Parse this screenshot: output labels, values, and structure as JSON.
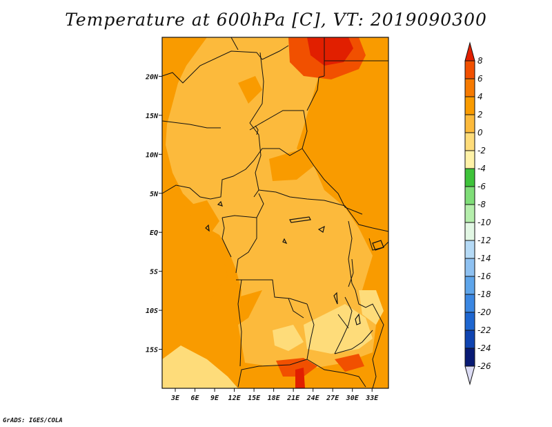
{
  "title": "Temperature at 600hPa [C], VT: 2019090300",
  "credit": "GrADS: IGES/COLA",
  "chart_data": {
    "type": "heatmap",
    "title": "Temperature at 600hPa [C], VT: 2019090300",
    "xlabel": "",
    "ylabel": "",
    "xlim": [
      1,
      35.5
    ],
    "ylim": [
      -20,
      25
    ],
    "x_ticks": [
      "3E",
      "6E",
      "9E",
      "12E",
      "15E",
      "18E",
      "21E",
      "24E",
      "27E",
      "30E",
      "33E"
    ],
    "x_tick_values": [
      3,
      6,
      9,
      12,
      15,
      18,
      21,
      24,
      27,
      30,
      33
    ],
    "y_ticks": [
      "20N",
      "15N",
      "10N",
      "5N",
      "EQ",
      "5S",
      "10S",
      "15S"
    ],
    "y_tick_values": [
      20,
      15,
      10,
      5,
      0,
      -5,
      -10,
      -15
    ],
    "colorbar_levels": [
      "8",
      "6",
      "4",
      "2",
      "0",
      "-2",
      "-4",
      "-6",
      "-8",
      "-10",
      "-12",
      "-14",
      "-16",
      "-18",
      "-20",
      "-22",
      "-24",
      "-26"
    ],
    "colorbar_colors": [
      "#e11f00",
      "#f15000",
      "#f67a00",
      "#f99b00",
      "#fcba3c",
      "#fedc7a",
      "#fff2a8",
      "#3ec33a",
      "#7fdd78",
      "#b5eeac",
      "#e2f7e4",
      "#b5daf6",
      "#8ec1f1",
      "#5ea5ea",
      "#3b87e2",
      "#1e66d0",
      "#0f44b1",
      "#081a74",
      "#dcdcf4"
    ],
    "field_regions": [
      {
        "label": "2 to 4",
        "color": "#f99b00"
      },
      {
        "label": "0 to 2",
        "color": "#fcba3c"
      },
      {
        "label": "-2 to 0",
        "color": "#fedc7a"
      },
      {
        "label": "4 to 6",
        "color": "#f15000"
      },
      {
        "label": "6 to 8",
        "color": "#e11f00"
      }
    ]
  }
}
